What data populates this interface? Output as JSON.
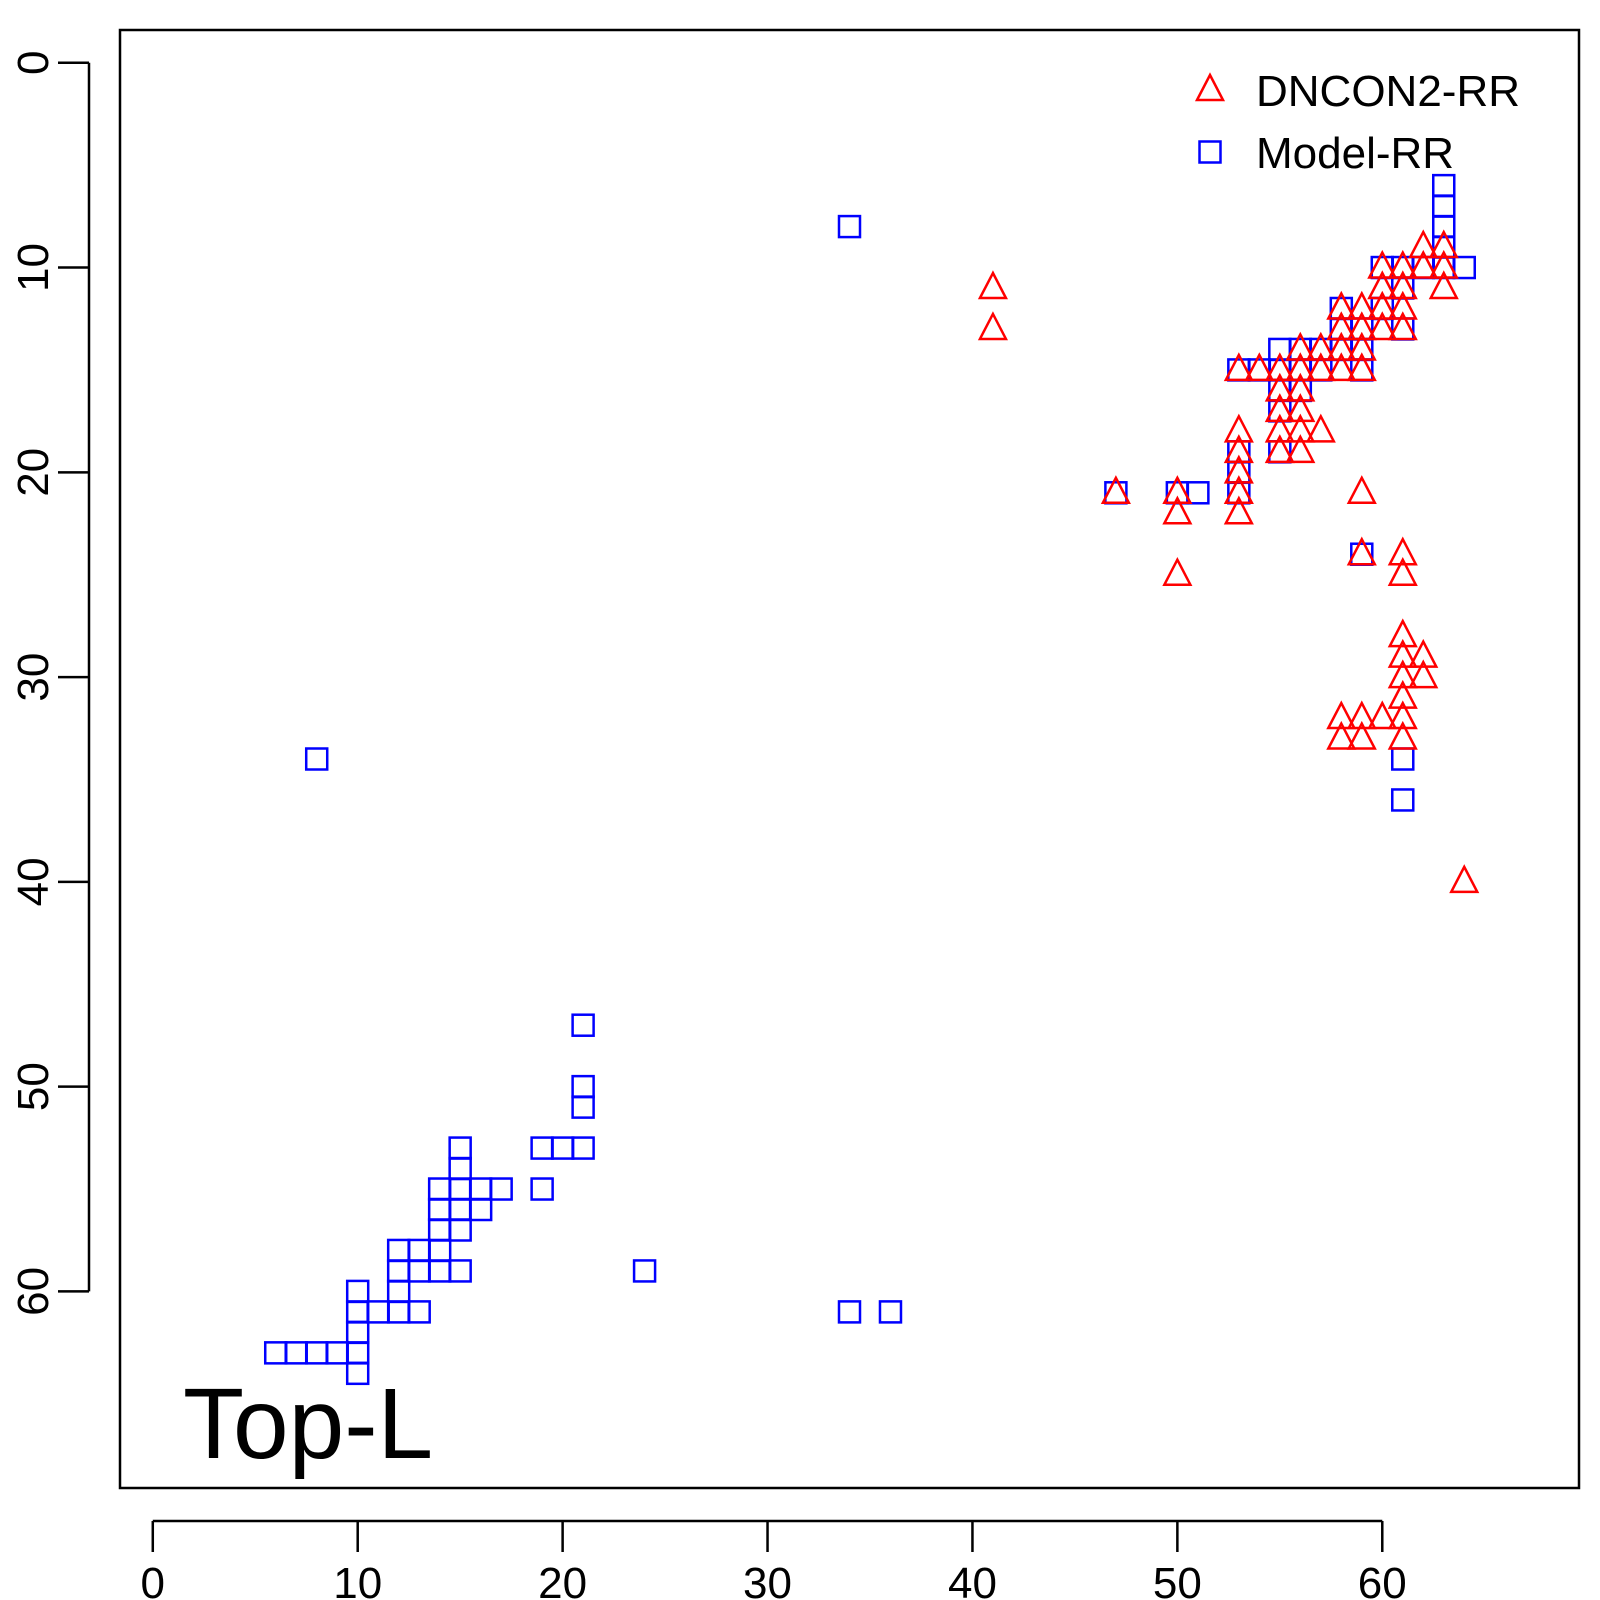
{
  "chart_data": {
    "type": "scatter",
    "title": "",
    "xlabel": "",
    "ylabel": "",
    "annotation": "Top-L",
    "xlim": [
      -1.6,
      69.6
    ],
    "ylim": [
      -1.6,
      69.6
    ],
    "y_reversed": true,
    "x_ticks": [
      0,
      10,
      20,
      30,
      40,
      50,
      60
    ],
    "y_ticks": [
      0,
      10,
      20,
      30,
      40,
      50,
      60
    ],
    "grid": false,
    "legend_position": "top-right",
    "series": [
      {
        "name": "DNCON2-RR",
        "marker": "triangle",
        "color": "#ff0000",
        "points": [
          [
            41,
            11
          ],
          [
            41,
            13
          ],
          [
            47,
            21
          ],
          [
            50,
            21
          ],
          [
            50,
            22
          ],
          [
            50,
            25
          ],
          [
            53,
            15
          ],
          [
            53,
            18
          ],
          [
            53,
            19
          ],
          [
            53,
            20
          ],
          [
            53,
            21
          ],
          [
            53,
            22
          ],
          [
            54,
            15
          ],
          [
            55,
            15
          ],
          [
            55,
            16
          ],
          [
            55,
            17
          ],
          [
            55,
            18
          ],
          [
            55,
            19
          ],
          [
            56,
            14
          ],
          [
            56,
            15
          ],
          [
            56,
            16
          ],
          [
            56,
            17
          ],
          [
            56,
            18
          ],
          [
            56,
            19
          ],
          [
            57,
            14
          ],
          [
            57,
            15
          ],
          [
            57,
            18
          ],
          [
            58,
            12
          ],
          [
            58,
            13
          ],
          [
            58,
            14
          ],
          [
            58,
            15
          ],
          [
            58,
            32
          ],
          [
            58,
            33
          ],
          [
            59,
            12
          ],
          [
            59,
            13
          ],
          [
            59,
            14
          ],
          [
            59,
            15
          ],
          [
            59,
            21
          ],
          [
            59,
            24
          ],
          [
            59,
            32
          ],
          [
            59,
            33
          ],
          [
            60,
            10
          ],
          [
            60,
            11
          ],
          [
            60,
            12
          ],
          [
            60,
            13
          ],
          [
            60,
            32
          ],
          [
            61,
            10
          ],
          [
            61,
            11
          ],
          [
            61,
            12
          ],
          [
            61,
            13
          ],
          [
            61,
            24
          ],
          [
            61,
            25
          ],
          [
            61,
            28
          ],
          [
            61,
            29
          ],
          [
            61,
            30
          ],
          [
            61,
            31
          ],
          [
            61,
            32
          ],
          [
            61,
            33
          ],
          [
            62,
            9
          ],
          [
            62,
            10
          ],
          [
            62,
            29
          ],
          [
            62,
            30
          ],
          [
            63,
            9
          ],
          [
            63,
            10
          ],
          [
            63,
            11
          ],
          [
            64,
            40
          ]
        ]
      },
      {
        "name": "Model-RR",
        "marker": "square",
        "color": "#0000ff",
        "points": [
          [
            34,
            8
          ],
          [
            8,
            34
          ],
          [
            47,
            21
          ],
          [
            50,
            21
          ],
          [
            51,
            21
          ],
          [
            53,
            15
          ],
          [
            53,
            19
          ],
          [
            53,
            20
          ],
          [
            53,
            21
          ],
          [
            54,
            15
          ],
          [
            55,
            14
          ],
          [
            55,
            15
          ],
          [
            55,
            16
          ],
          [
            55,
            17
          ],
          [
            55,
            19
          ],
          [
            56,
            14
          ],
          [
            56,
            15
          ],
          [
            56,
            16
          ],
          [
            57,
            14
          ],
          [
            57,
            15
          ],
          [
            58,
            12
          ],
          [
            58,
            13
          ],
          [
            58,
            14
          ],
          [
            59,
            13
          ],
          [
            59,
            14
          ],
          [
            59,
            15
          ],
          [
            59,
            24
          ],
          [
            60,
            10
          ],
          [
            60,
            12
          ],
          [
            61,
            10
          ],
          [
            61,
            11
          ],
          [
            61,
            13
          ],
          [
            61,
            34
          ],
          [
            61,
            36
          ],
          [
            62,
            10
          ],
          [
            63,
            6
          ],
          [
            63,
            7
          ],
          [
            63,
            8
          ],
          [
            63,
            9
          ],
          [
            63,
            10
          ],
          [
            64,
            10
          ],
          [
            6,
            63
          ],
          [
            7,
            63
          ],
          [
            8,
            63
          ],
          [
            9,
            63
          ],
          [
            10,
            60
          ],
          [
            10,
            61
          ],
          [
            10,
            62
          ],
          [
            10,
            63
          ],
          [
            10,
            64
          ],
          [
            11,
            61
          ],
          [
            12,
            58
          ],
          [
            12,
            59
          ],
          [
            12,
            60
          ],
          [
            12,
            61
          ],
          [
            13,
            58
          ],
          [
            13,
            59
          ],
          [
            13,
            61
          ],
          [
            14,
            55
          ],
          [
            14,
            56
          ],
          [
            14,
            57
          ],
          [
            14,
            58
          ],
          [
            14,
            59
          ],
          [
            15,
            53
          ],
          [
            15,
            54
          ],
          [
            15,
            55
          ],
          [
            15,
            56
          ],
          [
            15,
            57
          ],
          [
            15,
            59
          ],
          [
            16,
            55
          ],
          [
            16,
            56
          ],
          [
            17,
            55
          ],
          [
            19,
            53
          ],
          [
            19,
            55
          ],
          [
            20,
            53
          ],
          [
            21,
            47
          ],
          [
            21,
            50
          ],
          [
            21,
            51
          ],
          [
            21,
            53
          ],
          [
            24,
            59
          ],
          [
            34,
            61
          ],
          [
            36,
            61
          ]
        ]
      }
    ]
  }
}
